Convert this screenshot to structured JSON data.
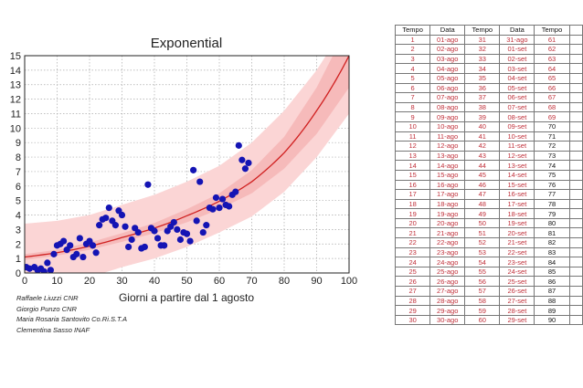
{
  "chart_data": {
    "type": "scatter",
    "title": "Exponential",
    "xlabel": "Giorni a partire dal 1 agosto",
    "ylabel": "",
    "xlim": [
      0,
      100
    ],
    "ylim": [
      0,
      15
    ],
    "xticks": [
      0,
      10,
      20,
      30,
      40,
      50,
      60,
      70,
      80,
      90,
      100
    ],
    "yticks": [
      0,
      1,
      2,
      3,
      4,
      5,
      6,
      7,
      8,
      9,
      10,
      11,
      12,
      13,
      14,
      15
    ],
    "grid": true,
    "points": {
      "x": [
        0.5,
        1.5,
        3,
        4,
        5,
        6,
        7,
        8,
        9,
        10,
        11,
        12,
        13,
        14,
        15,
        16,
        17,
        18,
        19,
        20,
        21,
        22,
        23,
        24,
        25,
        26,
        27,
        28,
        29,
        30,
        31,
        32,
        33,
        34,
        35,
        36,
        37,
        38,
        39,
        40,
        41,
        42,
        43,
        44,
        45,
        46,
        47,
        48,
        49,
        50,
        51,
        52,
        53,
        54,
        55,
        56,
        57,
        58,
        59,
        60,
        61,
        62,
        63,
        64,
        65,
        66,
        67,
        68,
        69
      ],
      "y": [
        0.4,
        0.3,
        0.4,
        0.2,
        0.3,
        0.1,
        0.7,
        0.2,
        1.3,
        1.9,
        2.0,
        2.2,
        1.6,
        1.9,
        1.1,
        1.3,
        2.4,
        1.1,
        2.0,
        2.2,
        1.9,
        1.4,
        3.3,
        3.7,
        3.8,
        4.5,
        3.6,
        3.3,
        4.3,
        4.0,
        3.2,
        1.8,
        2.3,
        3.1,
        2.8,
        1.7,
        1.8,
        6.1,
        3.1,
        2.9,
        2.4,
        1.9,
        1.9,
        2.9,
        3.2,
        3.5,
        3.0,
        2.3,
        2.8,
        2.7,
        2.2,
        7.1,
        3.6,
        6.3,
        2.8,
        3.3,
        4.5,
        4.4,
        5.2,
        4.5,
        5.1,
        4.7,
        4.6,
        5.4,
        5.6,
        8.8,
        7.8,
        7.2,
        7.6
      ]
    },
    "fit": {
      "x": [
        0,
        10,
        20,
        30,
        40,
        50,
        60,
        70,
        80,
        90,
        100
      ],
      "y": [
        1.1,
        1.4,
        1.85,
        2.45,
        3.1,
        3.95,
        4.95,
        6.3,
        8.3,
        11.2,
        15.0
      ]
    },
    "inner_band": {
      "lower": [
        0.9,
        1.2,
        1.6,
        2.15,
        2.75,
        3.5,
        4.4,
        5.5,
        7.2,
        9.6,
        12.8
      ],
      "upper": [
        1.3,
        1.6,
        2.1,
        2.75,
        3.45,
        4.4,
        5.5,
        7.1,
        9.4,
        12.8,
        17.2
      ]
    },
    "outer_band": {
      "lower": [
        -1.2,
        -0.8,
        -0.3,
        0.4,
        1.0,
        1.8,
        2.8,
        3.9,
        5.6,
        8.0,
        11.0
      ],
      "upper": [
        3.4,
        3.6,
        4.0,
        4.7,
        5.4,
        6.3,
        7.4,
        9.0,
        11.2,
        14.0,
        17.5
      ]
    },
    "colors": {
      "points": "#1414b4",
      "fit": "#d02020",
      "inner": "#f4a8a8",
      "outer": "#fbd5d5"
    }
  },
  "credits": [
    "Raffaele Liuzzi CNR",
    "Giorgio Punzo CNR",
    "Maria Rosaria Santovito Co.Ri.S.T.A",
    "Clementina Sasso INAF"
  ],
  "table": {
    "headers": [
      "Tempo",
      "Data",
      "Tempo",
      "Data",
      "Tempo",
      ""
    ],
    "rows": [
      [
        "1",
        "01-ago",
        "31",
        "31-ago",
        "61"
      ],
      [
        "2",
        "02-ago",
        "32",
        "01-set",
        "62"
      ],
      [
        "3",
        "03-ago",
        "33",
        "02-set",
        "63"
      ],
      [
        "4",
        "04-ago",
        "34",
        "03-set",
        "64"
      ],
      [
        "5",
        "05-ago",
        "35",
        "04-set",
        "65"
      ],
      [
        "6",
        "06-ago",
        "36",
        "05-set",
        "66"
      ],
      [
        "7",
        "07-ago",
        "37",
        "06-set",
        "67"
      ],
      [
        "8",
        "08-ago",
        "38",
        "07-set",
        "68"
      ],
      [
        "9",
        "09-ago",
        "39",
        "08-set",
        "69"
      ],
      [
        "10",
        "10-ago",
        "40",
        "09-set",
        "70"
      ],
      [
        "11",
        "11-ago",
        "41",
        "10-set",
        "71"
      ],
      [
        "12",
        "12-ago",
        "42",
        "11-set",
        "72"
      ],
      [
        "13",
        "13-ago",
        "43",
        "12-set",
        "73"
      ],
      [
        "14",
        "14-ago",
        "44",
        "13-set",
        "74"
      ],
      [
        "15",
        "15-ago",
        "45",
        "14-set",
        "75"
      ],
      [
        "16",
        "16-ago",
        "46",
        "15-set",
        "76"
      ],
      [
        "17",
        "17-ago",
        "47",
        "16-set",
        "77"
      ],
      [
        "18",
        "18-ago",
        "48",
        "17-set",
        "78"
      ],
      [
        "19",
        "19-ago",
        "49",
        "18-set",
        "79"
      ],
      [
        "20",
        "20-ago",
        "50",
        "19-set",
        "80"
      ],
      [
        "21",
        "21-ago",
        "51",
        "20-set",
        "81"
      ],
      [
        "22",
        "22-ago",
        "52",
        "21-set",
        "82"
      ],
      [
        "23",
        "23-ago",
        "53",
        "22-set",
        "83"
      ],
      [
        "24",
        "24-ago",
        "54",
        "23-set",
        "84"
      ],
      [
        "25",
        "25-ago",
        "55",
        "24-set",
        "85"
      ],
      [
        "26",
        "26-ago",
        "56",
        "25-set",
        "86"
      ],
      [
        "27",
        "27-ago",
        "57",
        "26-set",
        "87"
      ],
      [
        "28",
        "28-ago",
        "58",
        "27-set",
        "88"
      ],
      [
        "29",
        "29-ago",
        "59",
        "28-set",
        "89"
      ],
      [
        "30",
        "30-ago",
        "60",
        "29-set",
        "90"
      ]
    ]
  }
}
